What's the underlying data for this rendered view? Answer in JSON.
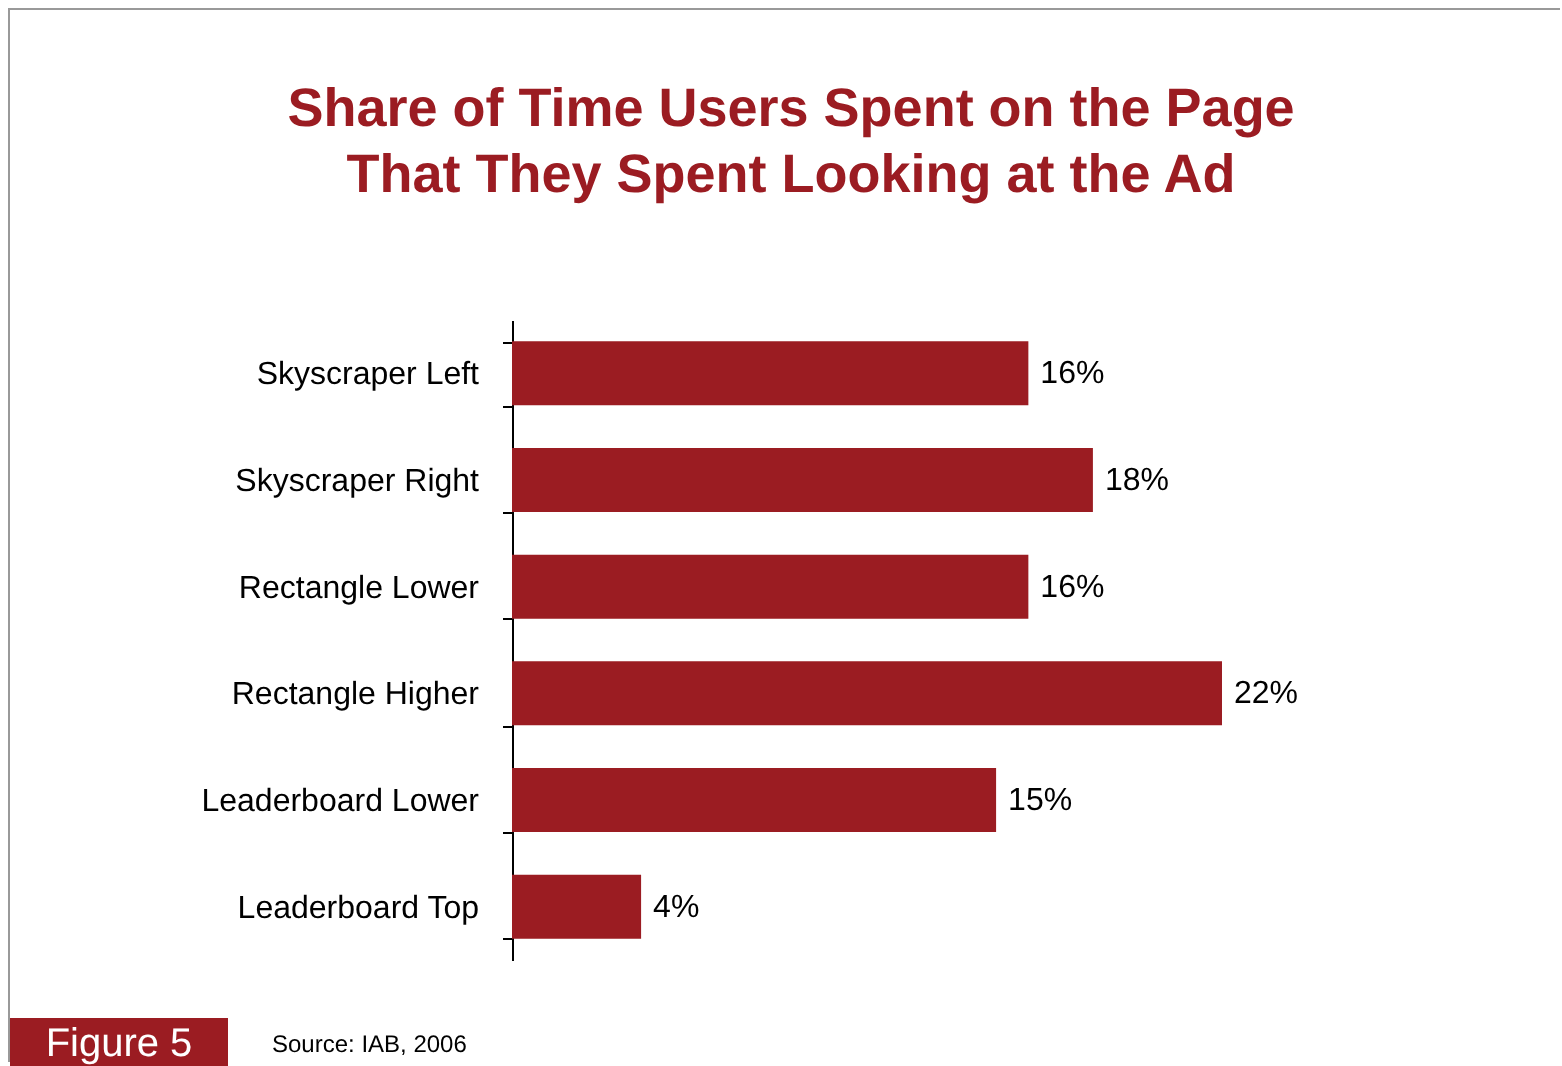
{
  "chart_data": {
    "type": "bar",
    "orientation": "horizontal",
    "title": "Share of Time Users Spent on the Page\nThat They Spent Looking at the Ad",
    "categories": [
      "Skyscraper Left",
      "Skyscraper Right",
      "Rectangle Lower",
      "Rectangle Higher",
      "Leaderboard Lower",
      "Leaderboard Top"
    ],
    "values": [
      16,
      18,
      16,
      22,
      15,
      4
    ],
    "value_labels": [
      "16%",
      "18%",
      "16%",
      "22%",
      "15%",
      "4%"
    ],
    "color": "#9b1c22",
    "annotations": [
      "Figure 5",
      "Source: IAB, 2006"
    ]
  }
}
